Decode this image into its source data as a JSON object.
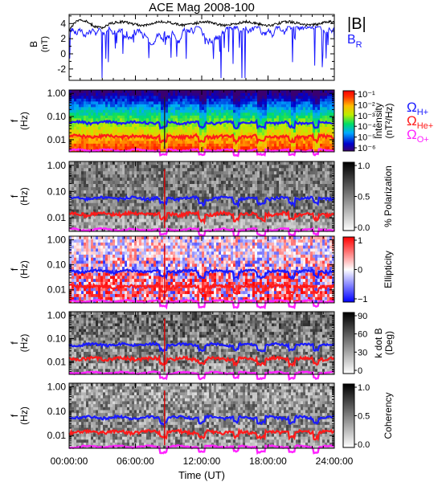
{
  "chart_data": {
    "title": "ACE Mag 2008-100",
    "type": "spectrogram-stack",
    "x_axis": {
      "label": "Time (UT)",
      "range": [
        "00:00:00",
        "24:00:00"
      ],
      "ticks": [
        "00:00:00",
        "06:00:00",
        "12:00:00",
        "18:00:00",
        "24:00:00"
      ]
    },
    "gyro_legend": [
      {
        "name": "Ω",
        "sub": "H+",
        "color": "#1a1aff"
      },
      {
        "name": "Ω",
        "sub": "He+",
        "color": "#ff1a1a"
      },
      {
        "name": "Ω",
        "sub": "O+",
        "color": "#ff22ff"
      }
    ],
    "freq_ticks": [
      "1.00",
      "0.10",
      "0.01"
    ],
    "gyro_levels_hz": {
      "H+": 0.055,
      "He+": 0.0138,
      "O+": 0.0035
    },
    "panels": [
      {
        "id": "field",
        "type": "line",
        "ylabel": "B",
        "yunits": "(nT)",
        "ylim": [
          -3.5,
          5.2
        ],
        "yticks": [
          "4",
          "2",
          "0",
          "-2"
        ],
        "series": [
          {
            "name": "|B|",
            "color": "#000000",
            "typical_nT": 4.0
          },
          {
            "name": "B",
            "sub": "R",
            "color": "#1a1aff",
            "typical_nT": 2.5
          }
        ]
      },
      {
        "id": "intensity",
        "type": "heatmap",
        "ylabel": "f",
        "yunits": "(Hz)",
        "colormap": "rainbow",
        "colorbar": {
          "title": "Intensity",
          "units": "(nT²/Hz)",
          "ticks": [
            "10⁻¹",
            "10⁻²",
            "10⁻³",
            "10⁻⁴",
            "10⁻⁵",
            "10⁻⁶"
          ]
        }
      },
      {
        "id": "polarization",
        "type": "heatmap",
        "ylabel": "f",
        "yunits": "(Hz)",
        "colormap": "gray",
        "colorbar": {
          "title": "% Polarization",
          "units": "",
          "ticks": [
            "1.0",
            "0.5",
            "0.0"
          ]
        }
      },
      {
        "id": "ellipticity",
        "type": "heatmap",
        "ylabel": "f",
        "yunits": "(Hz)",
        "colormap": "bwr",
        "colorbar": {
          "title": "Ellipticity",
          "units": "",
          "ticks": [
            "1",
            "0",
            "−1"
          ]
        }
      },
      {
        "id": "kdotb",
        "type": "heatmap",
        "ylabel": "f",
        "yunits": "(Hz)",
        "colormap": "gray",
        "colorbar": {
          "title": "k dot B",
          "units": "(Deg)",
          "ticks": [
            "90",
            "60",
            "30",
            "0"
          ]
        }
      },
      {
        "id": "coherency",
        "type": "heatmap",
        "ylabel": "f",
        "yunits": "(Hz)",
        "colormap": "gray",
        "colorbar": {
          "title": "Coherency",
          "units": "",
          "ticks": [
            "1.0",
            "0.5",
            "0.0"
          ]
        }
      }
    ]
  }
}
